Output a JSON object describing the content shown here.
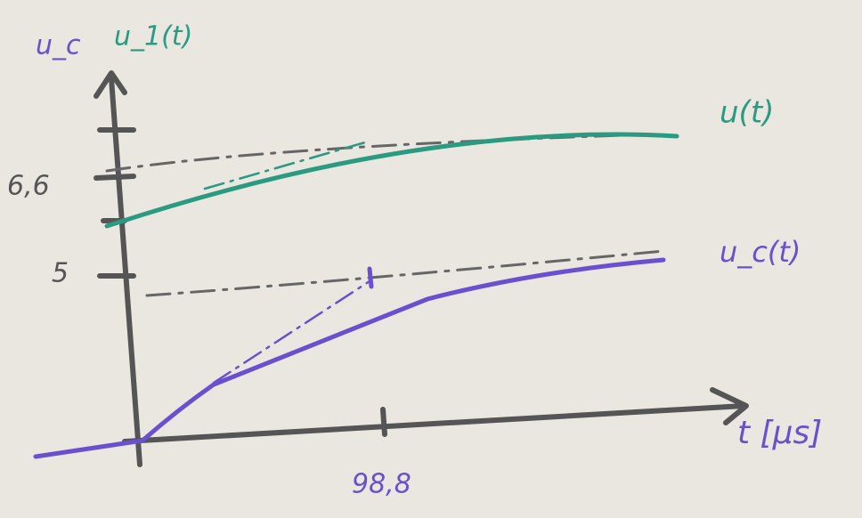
{
  "axes": {
    "y_labels": [
      "u_c",
      "u_1(t)"
    ],
    "x_label": "t [µs]"
  },
  "curves": [
    {
      "label": "u(t)"
    },
    {
      "label": "u_c(t)"
    }
  ],
  "ticks": {
    "y": [
      "6,6",
      "5"
    ],
    "x": [
      "98,8"
    ]
  }
}
